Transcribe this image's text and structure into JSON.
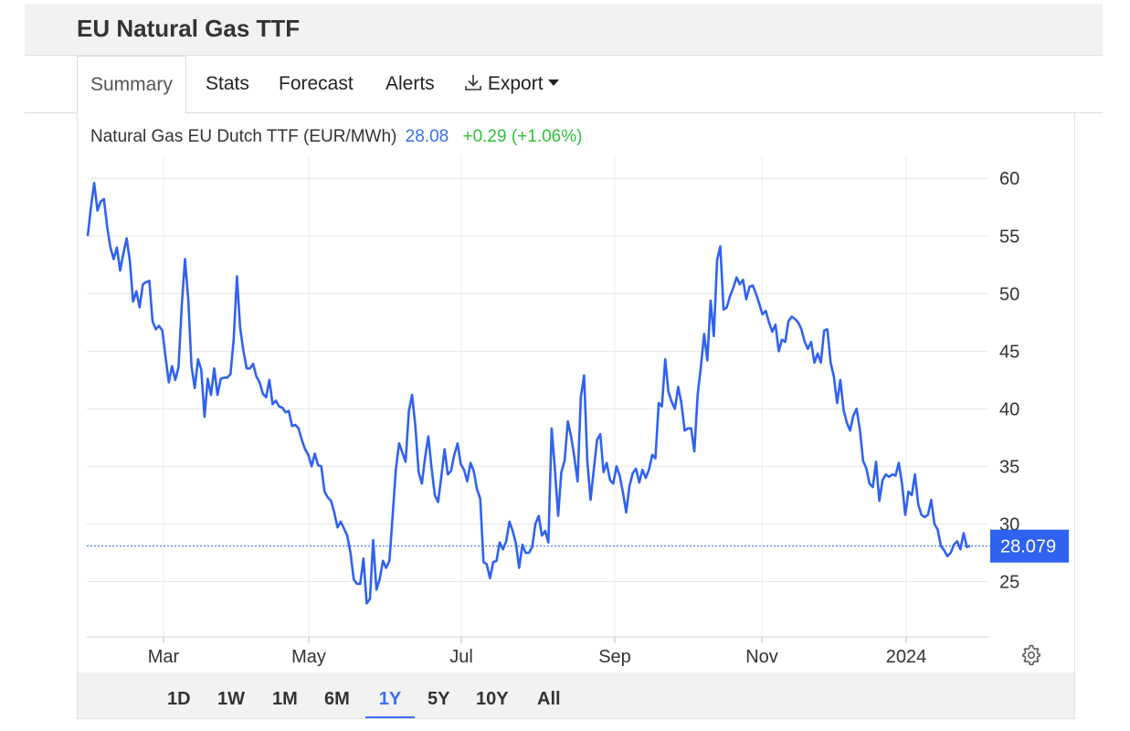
{
  "page": {
    "title": "EU Natural Gas TTF"
  },
  "tabs": [
    {
      "label": "Summary",
      "active": true
    },
    {
      "label": "Stats"
    },
    {
      "label": "Forecast"
    },
    {
      "label": "Alerts"
    },
    {
      "label": "Export",
      "icon": "download-icon",
      "has_dropdown": true
    }
  ],
  "legend": {
    "name": "Natural Gas EU Dutch TTF (EUR/MWh)",
    "last": "28.08",
    "change": "+0.29 (+1.06%)"
  },
  "ranges": [
    {
      "label": "1D"
    },
    {
      "label": "1W"
    },
    {
      "label": "1M"
    },
    {
      "label": "6M"
    },
    {
      "label": "1Y",
      "active": true
    },
    {
      "label": "5Y"
    },
    {
      "label": "10Y"
    },
    {
      "label": "All"
    }
  ],
  "settings_icon": "gear-icon",
  "colors": {
    "line": "#2f62ef",
    "up": "#2ec03a",
    "price_tag": "#2f62ef"
  },
  "chart_data": {
    "type": "line",
    "x_tick_labels": [
      "Mar",
      "May",
      "Jul",
      "Sep",
      "Nov",
      "2024"
    ],
    "y_ticks": [
      25,
      30,
      35,
      40,
      45,
      50,
      55,
      60
    ],
    "ylim": [
      20.2,
      62
    ],
    "last_value_label": "28.079",
    "last_value": 28.079,
    "grid": true,
    "series": [
      {
        "values": [
          55.0,
          57.5,
          59.6,
          57.2,
          58.0,
          58.2,
          55.8,
          54.0,
          53.0,
          54.0,
          52.0,
          53.5,
          54.8,
          52.8,
          49.3,
          50.2,
          48.8,
          50.8,
          51.0,
          51.1,
          47.6,
          46.9,
          47.2,
          46.8,
          44.5,
          42.3,
          43.7,
          42.5,
          43.6,
          49.0,
          53.0,
          49.5,
          43.7,
          41.8,
          44.3,
          43.4,
          39.3,
          42.6,
          41.2,
          43.5,
          41.2,
          42.6,
          42.7,
          42.7,
          43.0,
          46.0,
          51.5,
          47.0,
          45.0,
          43.5,
          43.5,
          43.9,
          42.8,
          42.3,
          41.3,
          41.0,
          42.5,
          40.4,
          40.7,
          40.2,
          40.1,
          39.7,
          39.8,
          38.5,
          38.6,
          38.3,
          37.3,
          36.5,
          36.0,
          35.0,
          36.1,
          35.1,
          35.0,
          32.8,
          32.3,
          32.0,
          31.0,
          29.7,
          30.2,
          29.6,
          29.0,
          27.5,
          25.2,
          24.8,
          24.8,
          27.0,
          23.1,
          23.5,
          28.6,
          24.3,
          25.2,
          26.8,
          26.2,
          26.8,
          30.7,
          34.8,
          37.0,
          36.2,
          35.4,
          39.8,
          41.2,
          38.5,
          34.5,
          33.5,
          35.8,
          37.6,
          34.8,
          32.5,
          31.9,
          34.1,
          36.5,
          34.3,
          34.6,
          36.0,
          37.0,
          35.2,
          34.7,
          33.7,
          35.3,
          34.6,
          33.0,
          32.2,
          26.7,
          26.5,
          25.3,
          26.7,
          26.8,
          28.4,
          27.8,
          28.5,
          30.2,
          29.4,
          28.3,
          26.2,
          28.2,
          27.5,
          27.5,
          28.0,
          30.0,
          30.7,
          29.0,
          29.4,
          28.4,
          38.3,
          34.8,
          30.7,
          34.5,
          35.5,
          38.9,
          37.6,
          35.8,
          33.7,
          41.0,
          42.9,
          35.5,
          32.1,
          34.7,
          37.3,
          37.8,
          34.5,
          35.3,
          33.8,
          33.5,
          35.0,
          34.2,
          32.7,
          31.0,
          33.3,
          34.4,
          34.8,
          33.6,
          34.7,
          34.0,
          34.7,
          36.0,
          35.7,
          40.5,
          40.2,
          44.3,
          41.5,
          40.6,
          40.0,
          41.9,
          40.5,
          38.1,
          38.3,
          38.3,
          36.3,
          41.2,
          43.6,
          46.5,
          44.2,
          49.4,
          46.3,
          52.9,
          54.1,
          48.6,
          48.8,
          49.8,
          50.5,
          51.4,
          50.8,
          51.2,
          49.5,
          50.6,
          50.7,
          50.0,
          49.1,
          48.2,
          48.5,
          47.5,
          46.7,
          47.3,
          45.0,
          46.0,
          45.8,
          47.6,
          48.0,
          47.8,
          47.5,
          46.9,
          45.8,
          45.2,
          45.8,
          44.0,
          44.8,
          44.0,
          46.8,
          46.9,
          44.0,
          42.8,
          40.5,
          42.5,
          39.9,
          38.8,
          38.1,
          39.4,
          40.0,
          38.2,
          35.5,
          34.8,
          33.5,
          33.2,
          35.4,
          32.0,
          33.8,
          34.3,
          34.1,
          34.3,
          34.2,
          35.3,
          33.5,
          30.8,
          32.8,
          32.5,
          34.3,
          31.7,
          30.8,
          30.6,
          30.8,
          32.1,
          30.0,
          29.5,
          28.1,
          27.7,
          27.2,
          27.5,
          28.2,
          28.5,
          27.8,
          29.2,
          28.0,
          28.1
        ]
      }
    ]
  }
}
